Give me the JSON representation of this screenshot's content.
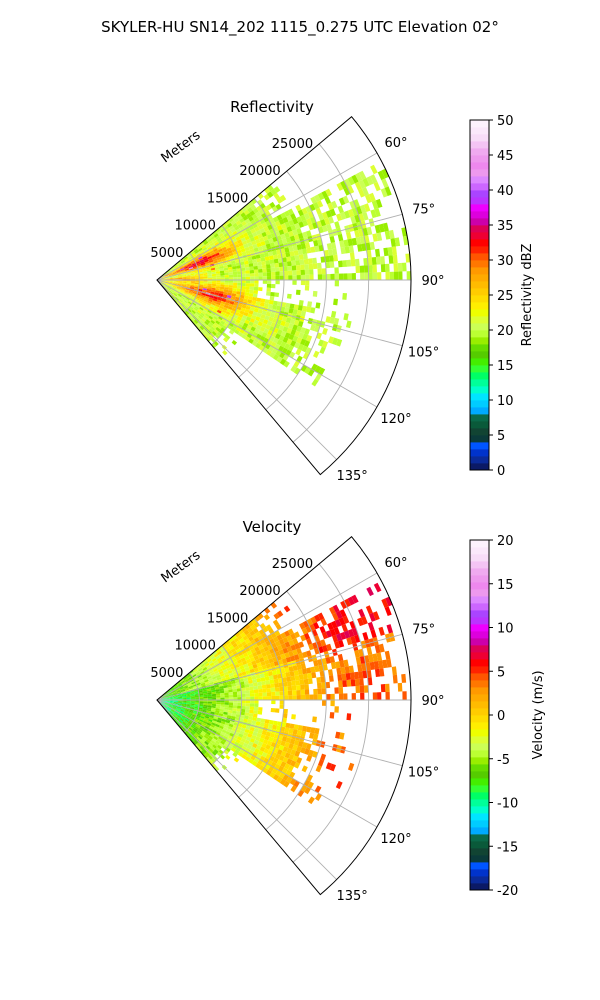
{
  "figure": {
    "suptitle": "SKYLER-HU  SN14_202  1115_0.275 UTC Elevation 02°"
  },
  "chart_data": [
    {
      "type": "heatmap",
      "projection": "polar-sector",
      "title": "Reflectivity",
      "range_label": "Meters",
      "r_ticks": [
        "5000",
        "10000",
        "15000",
        "20000",
        "25000"
      ],
      "r_max": 30000,
      "azimuth_range_deg": [
        50,
        140
      ],
      "theta_ticks": [
        "60°",
        "75°",
        "90°",
        "105°",
        "120°",
        "135°"
      ],
      "grid": true,
      "colorbar": {
        "label": "Reflectivity dBZ",
        "min": 0,
        "max": 50,
        "ticks": [
          "0",
          "5",
          "10",
          "15",
          "20",
          "25",
          "30",
          "35",
          "40",
          "45",
          "50"
        ],
        "colors": [
          "#0b1a66",
          "#0a2a9a",
          "#0033cc",
          "#0055ff",
          "#0a3a3a",
          "#114433",
          "#0a5a3a",
          "#0a6a4a",
          "#00aaff",
          "#00ccff",
          "#00e5ff",
          "#00ffcc",
          "#00ff99",
          "#00ff66",
          "#33ff33",
          "#44ee00",
          "#55cc00",
          "#66dd00",
          "#99ee00",
          "#bbff33",
          "#ccff55",
          "#ddff33",
          "#eeff00",
          "#ffee00",
          "#ffdd00",
          "#ffcc00",
          "#ffbb00",
          "#ffaa00",
          "#ff9900",
          "#ff7700",
          "#ff5500",
          "#ff2200",
          "#ff0000",
          "#ee0033",
          "#dd0055",
          "#cc00aa",
          "#dd00dd",
          "#ee00ff",
          "#bb33ff",
          "#aa44ff",
          "#cc66ff",
          "#dd88ff",
          "#ee99ee",
          "#ee88ee",
          "#ee99ee",
          "#f0aaf0",
          "#f4c4f4",
          "#f8dcf8",
          "#fbe8fb",
          "#fdf2fd"
        ]
      },
      "field_description": "dense returns near radar, max ~40 dBZ along bands at 70° and 100°-110°"
    },
    {
      "type": "heatmap",
      "projection": "polar-sector",
      "title": "Velocity",
      "range_label": "Meters",
      "r_ticks": [
        "5000",
        "10000",
        "15000",
        "20000",
        "25000"
      ],
      "r_max": 30000,
      "azimuth_range_deg": [
        50,
        140
      ],
      "theta_ticks": [
        "60°",
        "75°",
        "90°",
        "105°",
        "120°",
        "135°"
      ],
      "grid": true,
      "colorbar": {
        "label": "Velocity (m/s)",
        "min": -20,
        "max": 20,
        "ticks": [
          "-20",
          "-15",
          "-10",
          "-5",
          "0",
          "5",
          "10",
          "15",
          "20"
        ],
        "colors": [
          "#0b1a66",
          "#0a2a9a",
          "#0033cc",
          "#0055ff",
          "#0a3a3a",
          "#114433",
          "#0a5a3a",
          "#0a6a4a",
          "#00aaff",
          "#00ccff",
          "#00e5ff",
          "#00ffcc",
          "#00ff99",
          "#00ff66",
          "#33ff33",
          "#44ee00",
          "#55cc00",
          "#66dd00",
          "#99ee00",
          "#bbff33",
          "#ccff55",
          "#ddff33",
          "#eeff00",
          "#ffee00",
          "#ffdd00",
          "#ffcc00",
          "#ffbb00",
          "#ffaa00",
          "#ff9900",
          "#ff7700",
          "#ff5500",
          "#ff2200",
          "#ff0000",
          "#ee0033",
          "#dd0055",
          "#cc00aa",
          "#dd00dd",
          "#ee00ff",
          "#bb33ff",
          "#aa44ff",
          "#cc66ff",
          "#dd88ff",
          "#ee99ee",
          "#ee88ee",
          "#ee99ee",
          "#f0aaf0",
          "#f4c4f4",
          "#f8dcf8",
          "#fbe8fb",
          "#fdf2fd"
        ]
      },
      "field_description": "near-radar -10 m/s (cyan), transitioning to 0 m/s (yellow) at far range"
    }
  ]
}
